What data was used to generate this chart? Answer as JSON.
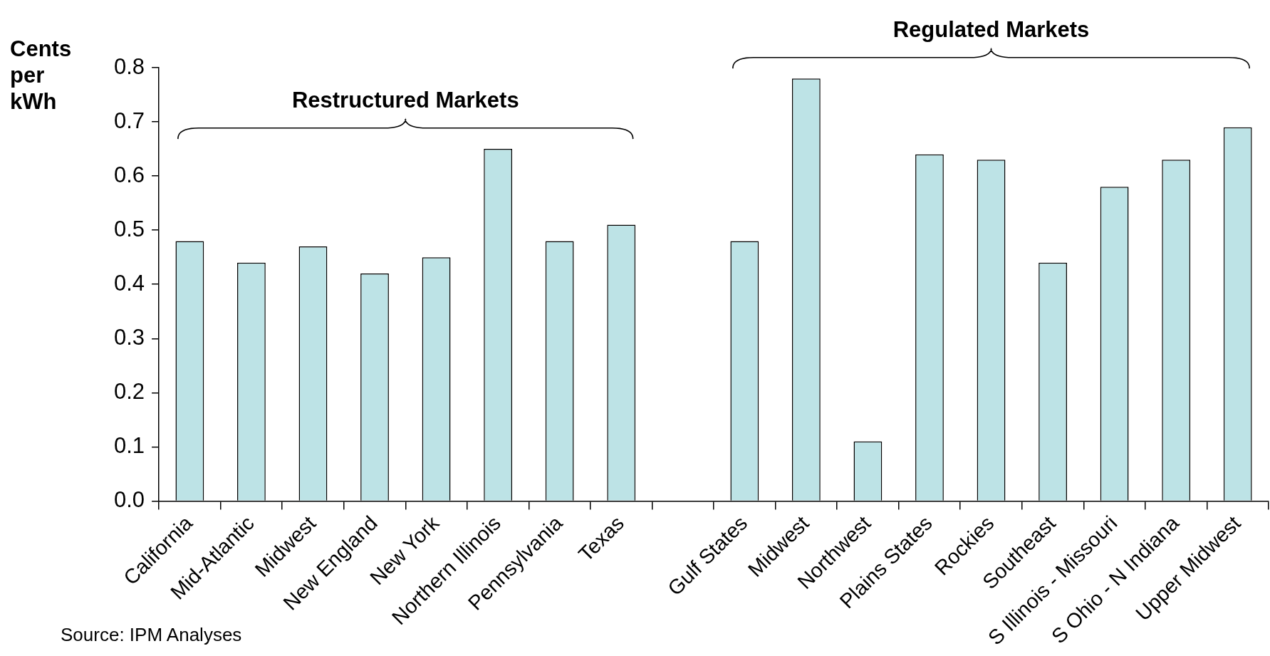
{
  "chart_data": {
    "type": "bar",
    "ylabel": "Cents per kWh",
    "categories": [
      "California",
      "Mid-Atlantic",
      "Midwest",
      "New England",
      "New York",
      "Northern Illinois",
      "Pennsylvania",
      "Texas",
      null,
      "Gulf States",
      "Midwest",
      "Northwest",
      "Plains States",
      "Rockies",
      "Southeast",
      "S Illinois - Missouri",
      "S Ohio - N Indiana",
      "Upper Midwest"
    ],
    "values": [
      0.48,
      0.44,
      0.47,
      0.42,
      0.45,
      0.65,
      0.48,
      0.51,
      null,
      0.48,
      0.78,
      0.11,
      0.64,
      0.63,
      0.44,
      0.58,
      0.63,
      0.69
    ],
    "color": "#bde3e6",
    "ylim": [
      0,
      0.8
    ],
    "yticks": [
      {
        "value": 0,
        "label": "0.0"
      },
      0.1,
      0.2,
      0.3,
      0.4,
      0.5,
      0.6,
      0.7,
      0.8
    ],
    "grid": false,
    "legend": false,
    "annotations": [
      "Restructured Markets",
      "Regulated Markets",
      "Source:  IPM Analyses"
    ]
  }
}
